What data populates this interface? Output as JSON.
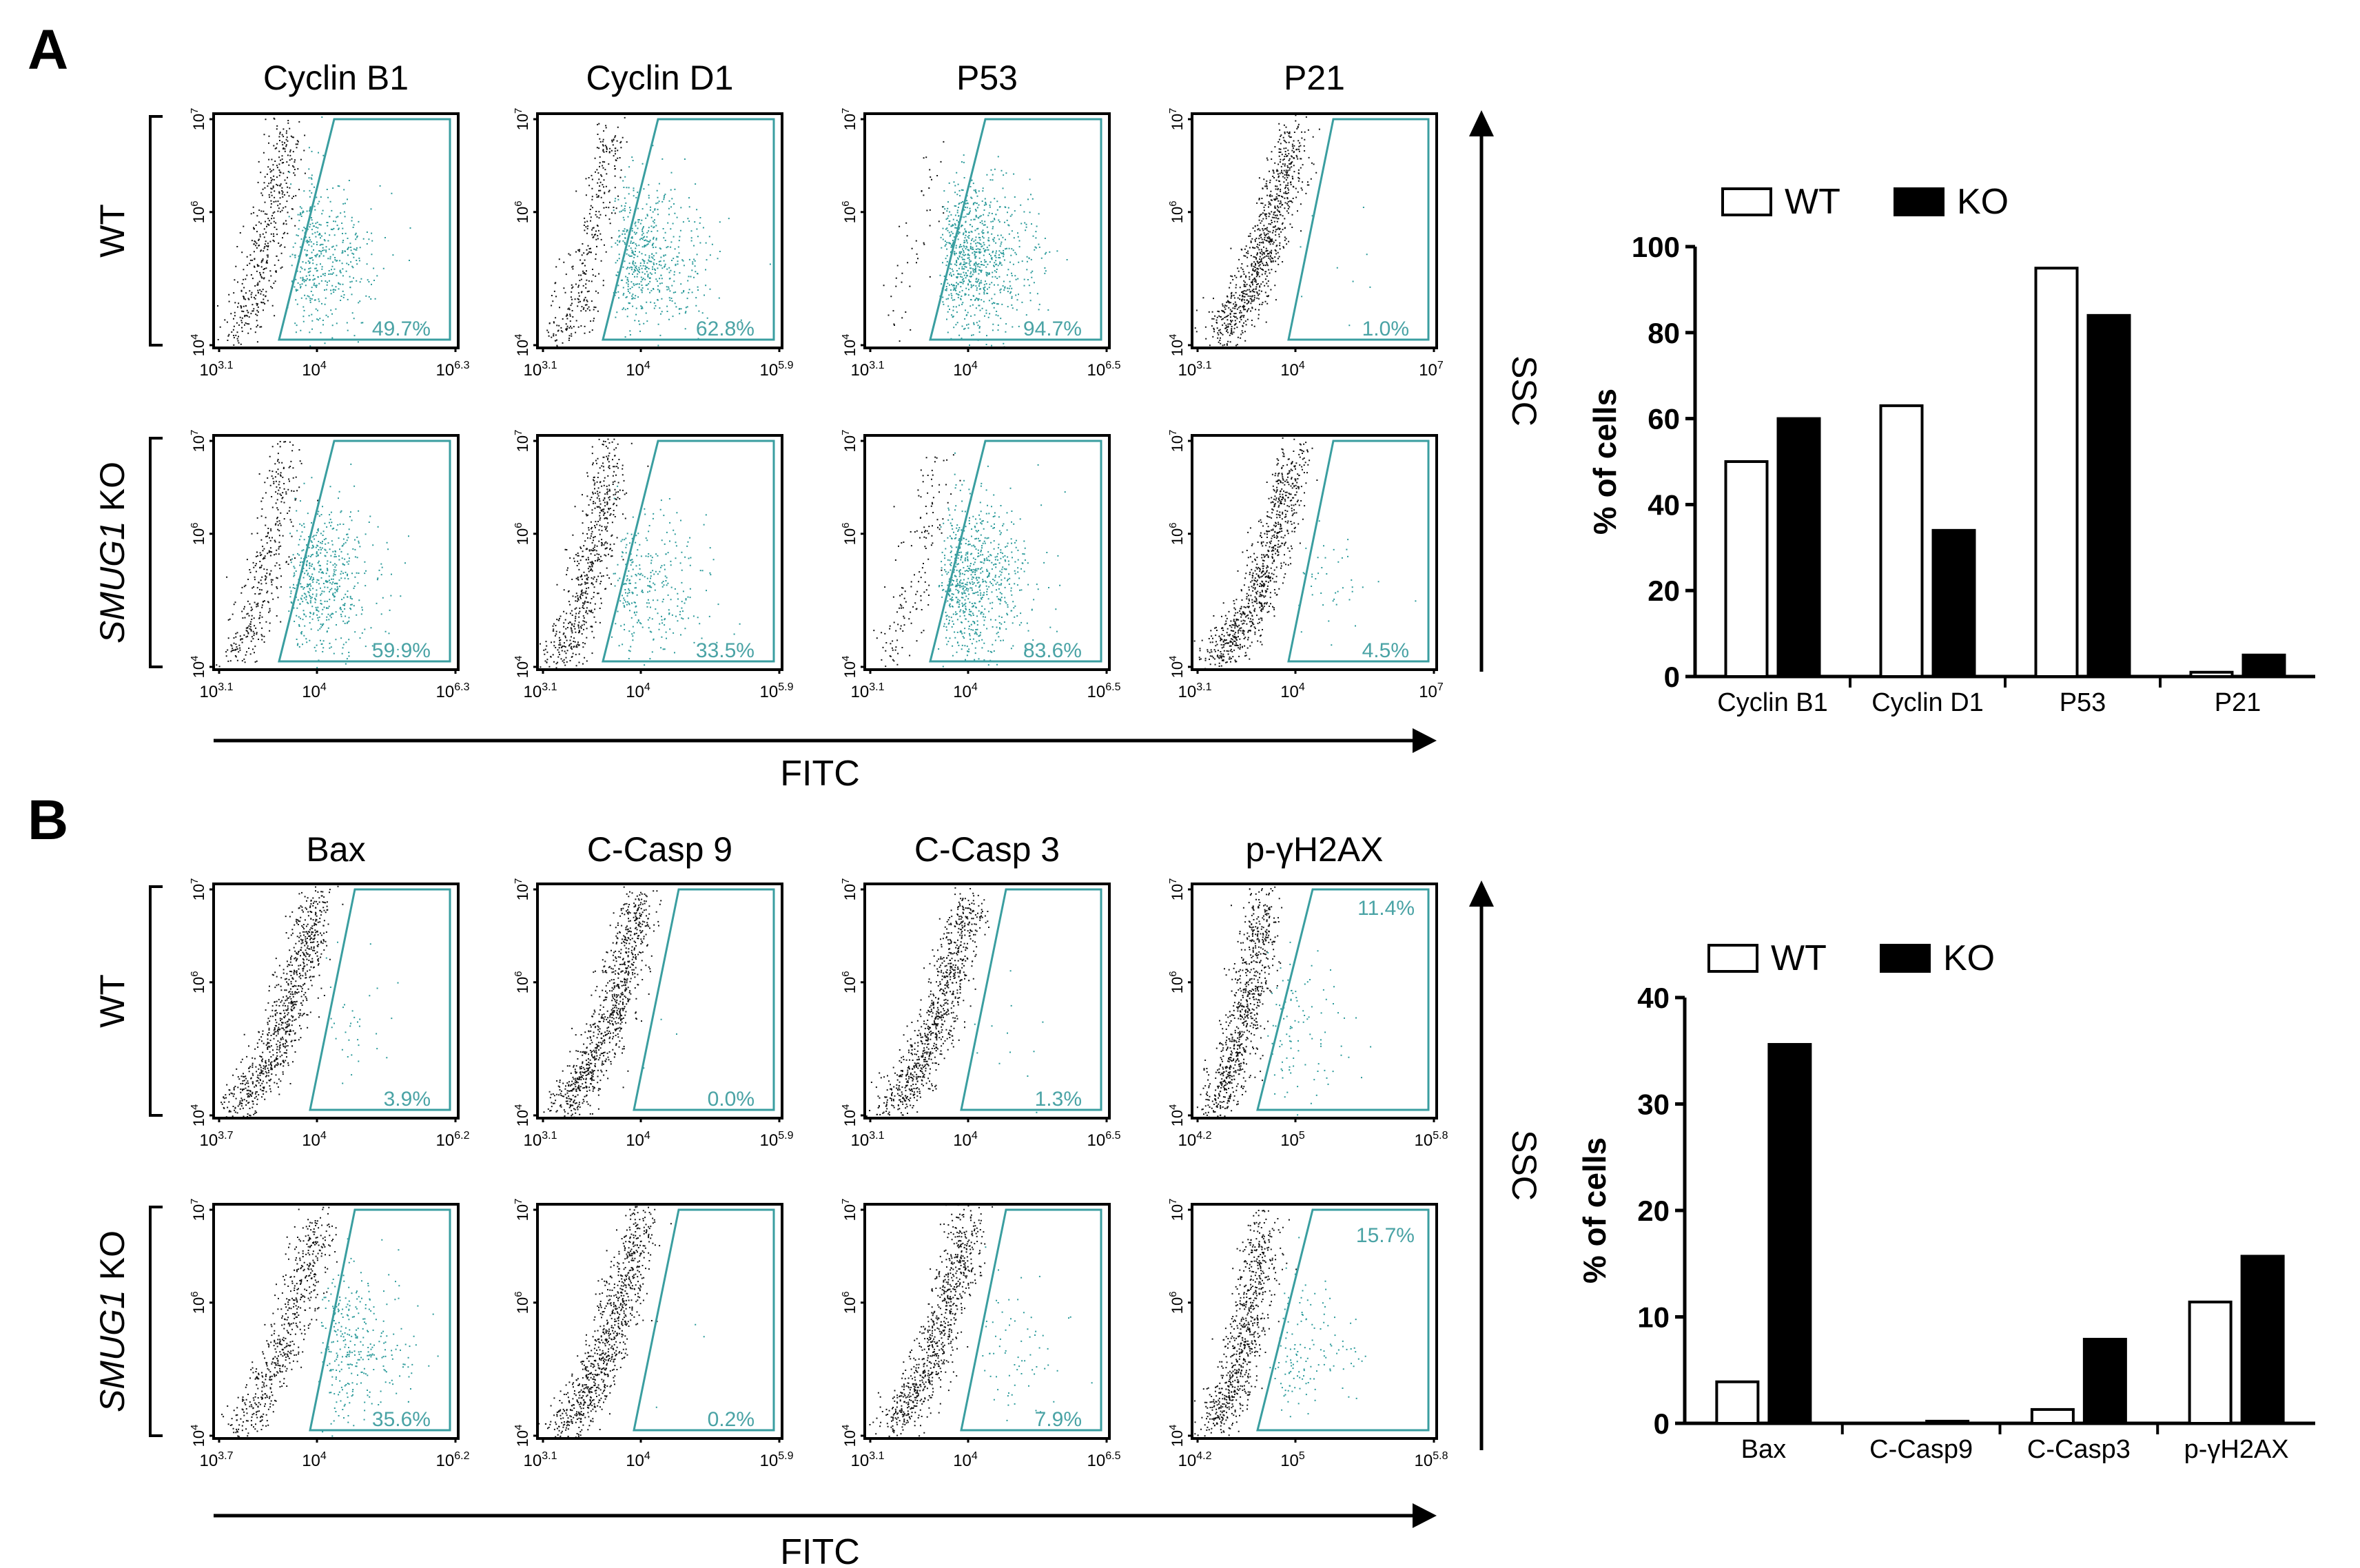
{
  "colors": {
    "gate": "#3a9ea0",
    "gated_dots": "#2a9a9a",
    "ungated_dots": "#111111",
    "label_teal": "#4aa3a5",
    "ko_bar": "#000000",
    "wt_bar": "#ffffff"
  },
  "panel_a": {
    "letter": "A",
    "markers": [
      "Cyclin B1",
      "Cyclin D1",
      "P53",
      "P21"
    ],
    "rows": [
      {
        "label": "WT",
        "italic": "",
        "suffix": ""
      },
      {
        "label": "",
        "italic": "SMUG1",
        "suffix": " KO"
      }
    ],
    "x_ticks": [
      {
        "low": "3.1",
        "mid": "4",
        "high": "6.3"
      },
      {
        "low": "3.1",
        "mid": "4",
        "high": "5.9"
      },
      {
        "low": "3.1",
        "mid": "4",
        "high": "6.5"
      },
      {
        "low": "3.1",
        "mid": "4",
        "high": "7"
      }
    ],
    "y_ticks": [
      "4",
      "6",
      "7"
    ],
    "percents": [
      [
        "49.7%",
        "62.8%",
        "94.7%",
        "1.0%"
      ],
      [
        "59.9%",
        "33.5%",
        "83.6%",
        "4.5%"
      ]
    ],
    "gate_fraction": [
      [
        0.497,
        0.628,
        0.947,
        0.01
      ],
      [
        0.599,
        0.335,
        0.836,
        0.045
      ]
    ],
    "x_axis": "FITC",
    "y_axis": "SSC"
  },
  "panel_b": {
    "letter": "B",
    "markers": [
      "Bax",
      "C-Casp 9",
      "C-Casp 3",
      "p-γH2AX"
    ],
    "rows": [
      {
        "label": "WT",
        "italic": "",
        "suffix": ""
      },
      {
        "label": "",
        "italic": "SMUG1",
        "suffix": " KO"
      }
    ],
    "x_ticks": [
      {
        "low": "3.7",
        "mid": "4",
        "high": "6.2"
      },
      {
        "low": "3.1",
        "mid": "4",
        "high": "5.9"
      },
      {
        "low": "3.1",
        "mid": "4",
        "high": "6.5"
      },
      {
        "low": "4.2",
        "mid": "5",
        "high": "5.8"
      }
    ],
    "y_ticks": [
      "4",
      "6",
      "7"
    ],
    "percents": [
      [
        "3.9%",
        "0.0%",
        "1.3%",
        "11.4%"
      ],
      [
        "35.6%",
        "0.2%",
        "7.9%",
        "15.7%"
      ]
    ],
    "gate_fraction": [
      [
        0.039,
        0.0,
        0.013,
        0.114
      ],
      [
        0.356,
        0.002,
        0.079,
        0.157
      ]
    ],
    "x_axis": "FITC",
    "y_axis": "SSC"
  },
  "chart_data": [
    {
      "type": "bar",
      "categories": [
        "Cyclin B1",
        "Cyclin D1",
        "P53",
        "P21"
      ],
      "series": [
        {
          "name": "WT",
          "values": [
            50,
            63,
            95,
            1
          ]
        },
        {
          "name": "KO",
          "values": [
            60,
            34,
            84,
            5
          ]
        }
      ],
      "ylabel": "% of cells",
      "ylim": [
        0,
        100
      ],
      "yticks": [
        0,
        20,
        40,
        60,
        80,
        100
      ],
      "legend": "top"
    },
    {
      "type": "bar",
      "categories": [
        "Bax",
        "C-Casp9",
        "C-Casp3",
        "p-γH2AX"
      ],
      "series": [
        {
          "name": "WT",
          "values": [
            3.9,
            0.0,
            1.3,
            11.4
          ]
        },
        {
          "name": "KO",
          "values": [
            35.6,
            0.2,
            7.9,
            15.7
          ]
        }
      ],
      "ylabel": "% of cells",
      "ylim": [
        0,
        40
      ],
      "yticks": [
        0,
        10,
        20,
        30,
        40
      ],
      "legend": "top"
    }
  ]
}
